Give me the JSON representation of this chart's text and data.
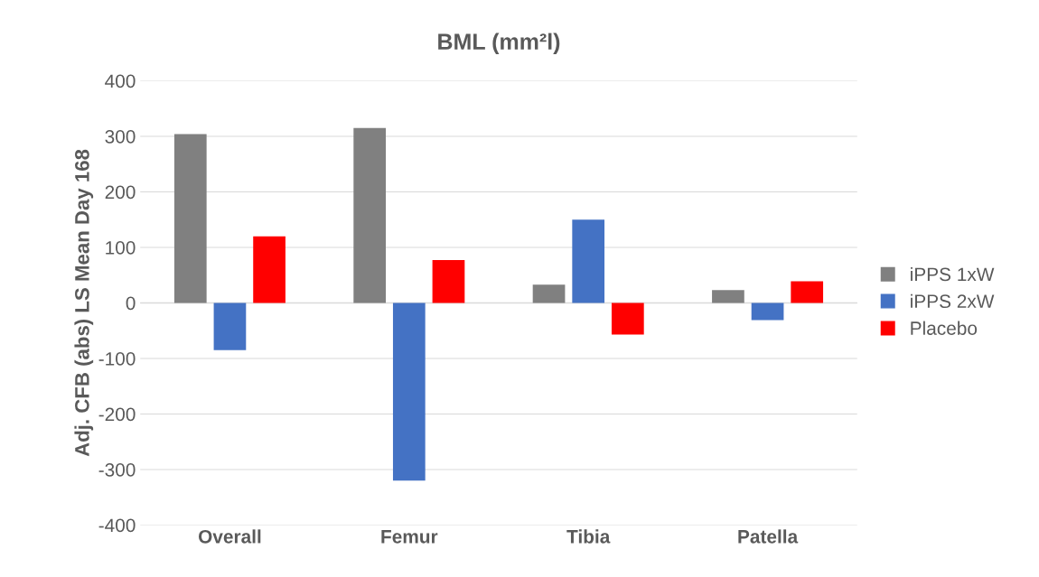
{
  "chart_data": {
    "type": "bar",
    "title": "BML (mm²l)",
    "ylabel": "Adj. CFB (abs) LS Mean Day 168",
    "categories": [
      "Overall",
      "Femur",
      "Tibia",
      "Patella"
    ],
    "series": [
      {
        "name": "iPPS 1xW",
        "color": "#808080",
        "values": [
          304,
          315,
          33,
          23
        ]
      },
      {
        "name": "iPPS 2xW",
        "color": "#4472c4",
        "values": [
          -85,
          -320,
          150,
          -31
        ]
      },
      {
        "name": "Placebo",
        "color": "#ff0000",
        "values": [
          120,
          77,
          -57,
          39
        ]
      }
    ],
    "ylim": [
      -400,
      400
    ],
    "yticks": [
      -400,
      -300,
      -200,
      -100,
      0,
      100,
      200,
      300,
      400
    ],
    "grid": "y",
    "legend": "right"
  }
}
